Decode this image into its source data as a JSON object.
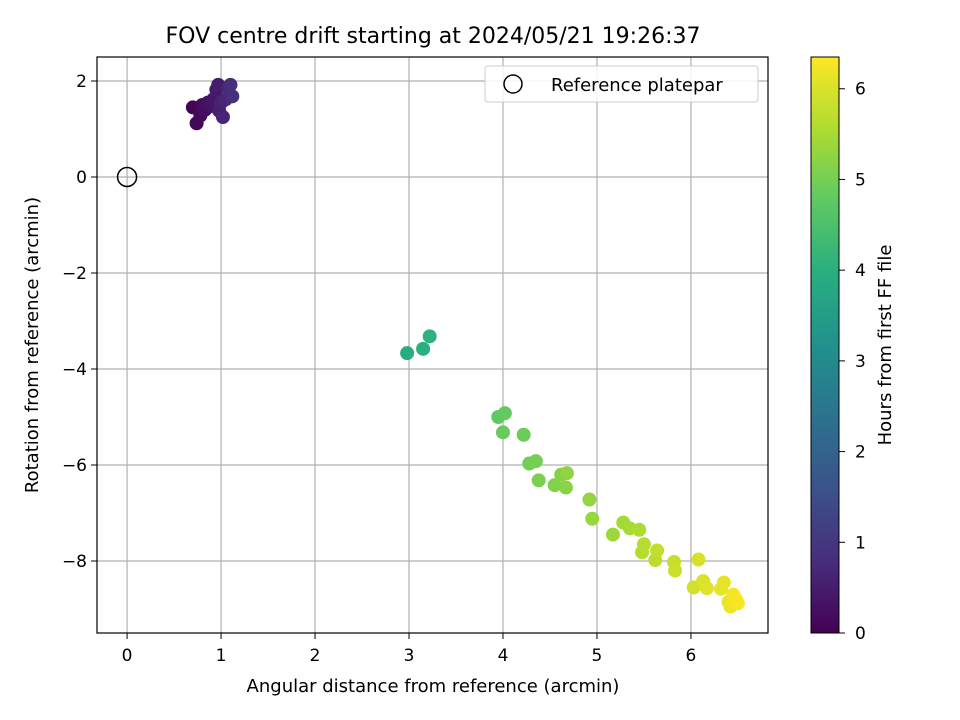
{
  "chart_data": {
    "type": "scatter",
    "title": "FOV centre drift starting at 2024/05/21 19:26:37",
    "xlabel": "Angular distance from reference (arcmin)",
    "ylabel": "Rotation from reference (arcmin)",
    "xlim": [
      -0.32,
      6.82
    ],
    "ylim": [
      -9.5,
      2.5
    ],
    "xticks": [
      0,
      1,
      2,
      3,
      4,
      5,
      6
    ],
    "yticks": [
      2,
      0,
      -2,
      -4,
      -6,
      -8
    ],
    "grid": true,
    "legend": {
      "location": "top-right",
      "entries": [
        "Reference platepar"
      ]
    },
    "colorbar": {
      "label": "Hours from first FF file",
      "min": 0,
      "max": 6.35,
      "ticks": [
        0,
        1,
        2,
        3,
        4,
        5,
        6
      ],
      "colormap": "viridis"
    },
    "reference_point": {
      "x": 0,
      "y": 0,
      "label": "Reference platepar"
    },
    "points": [
      {
        "x": 0.7,
        "y": 1.45,
        "c": 0.05
      },
      {
        "x": 0.74,
        "y": 1.12,
        "c": 0.1
      },
      {
        "x": 0.78,
        "y": 1.28,
        "c": 0.15
      },
      {
        "x": 0.8,
        "y": 1.5,
        "c": 0.2
      },
      {
        "x": 0.83,
        "y": 1.4,
        "c": 0.25
      },
      {
        "x": 0.86,
        "y": 1.55,
        "c": 0.3
      },
      {
        "x": 0.9,
        "y": 1.48,
        "c": 0.35
      },
      {
        "x": 0.92,
        "y": 1.62,
        "c": 0.4
      },
      {
        "x": 0.95,
        "y": 1.82,
        "c": 0.45
      },
      {
        "x": 0.97,
        "y": 1.92,
        "c": 0.5
      },
      {
        "x": 0.98,
        "y": 1.38,
        "c": 0.55
      },
      {
        "x": 1.0,
        "y": 1.55,
        "c": 0.6
      },
      {
        "x": 1.02,
        "y": 1.25,
        "c": 0.65
      },
      {
        "x": 1.05,
        "y": 1.62,
        "c": 0.7
      },
      {
        "x": 1.08,
        "y": 1.85,
        "c": 0.75
      },
      {
        "x": 1.1,
        "y": 1.92,
        "c": 0.8
      },
      {
        "x": 1.12,
        "y": 1.68,
        "c": 0.85
      },
      {
        "x": 2.98,
        "y": -3.67,
        "c": 3.95
      },
      {
        "x": 3.15,
        "y": -3.58,
        "c": 4.0
      },
      {
        "x": 3.22,
        "y": -3.32,
        "c": 4.05
      },
      {
        "x": 3.95,
        "y": -5.0,
        "c": 4.75
      },
      {
        "x": 4.02,
        "y": -4.92,
        "c": 4.8
      },
      {
        "x": 4.0,
        "y": -5.32,
        "c": 4.85
      },
      {
        "x": 4.22,
        "y": -5.37,
        "c": 4.9
      },
      {
        "x": 4.28,
        "y": -5.97,
        "c": 4.95
      },
      {
        "x": 4.35,
        "y": -5.92,
        "c": 5.0
      },
      {
        "x": 4.38,
        "y": -6.32,
        "c": 5.05
      },
      {
        "x": 4.55,
        "y": -6.42,
        "c": 5.1
      },
      {
        "x": 4.62,
        "y": -6.2,
        "c": 5.15
      },
      {
        "x": 4.67,
        "y": -6.47,
        "c": 5.2
      },
      {
        "x": 4.68,
        "y": -6.17,
        "c": 5.25
      },
      {
        "x": 4.92,
        "y": -6.72,
        "c": 5.3
      },
      {
        "x": 4.95,
        "y": -7.12,
        "c": 5.35
      },
      {
        "x": 5.17,
        "y": -7.45,
        "c": 5.4
      },
      {
        "x": 5.28,
        "y": -7.2,
        "c": 5.45
      },
      {
        "x": 5.35,
        "y": -7.32,
        "c": 5.5
      },
      {
        "x": 5.45,
        "y": -7.35,
        "c": 5.55
      },
      {
        "x": 5.48,
        "y": -7.82,
        "c": 5.6
      },
      {
        "x": 5.5,
        "y": -7.65,
        "c": 5.65
      },
      {
        "x": 5.62,
        "y": -7.98,
        "c": 5.7
      },
      {
        "x": 5.64,
        "y": -7.78,
        "c": 5.75
      },
      {
        "x": 5.82,
        "y": -8.02,
        "c": 5.8
      },
      {
        "x": 5.83,
        "y": -8.2,
        "c": 5.85
      },
      {
        "x": 6.03,
        "y": -8.55,
        "c": 5.9
      },
      {
        "x": 6.08,
        "y": -7.97,
        "c": 5.95
      },
      {
        "x": 6.13,
        "y": -8.42,
        "c": 6.0
      },
      {
        "x": 6.17,
        "y": -8.57,
        "c": 6.05
      },
      {
        "x": 6.32,
        "y": -8.58,
        "c": 6.1
      },
      {
        "x": 6.35,
        "y": -8.45,
        "c": 6.12
      },
      {
        "x": 6.4,
        "y": -8.85,
        "c": 6.15
      },
      {
        "x": 6.42,
        "y": -8.95,
        "c": 6.2
      },
      {
        "x": 6.45,
        "y": -8.7,
        "c": 6.25
      },
      {
        "x": 6.48,
        "y": -8.8,
        "c": 6.28
      },
      {
        "x": 6.5,
        "y": -8.88,
        "c": 6.3
      }
    ]
  }
}
